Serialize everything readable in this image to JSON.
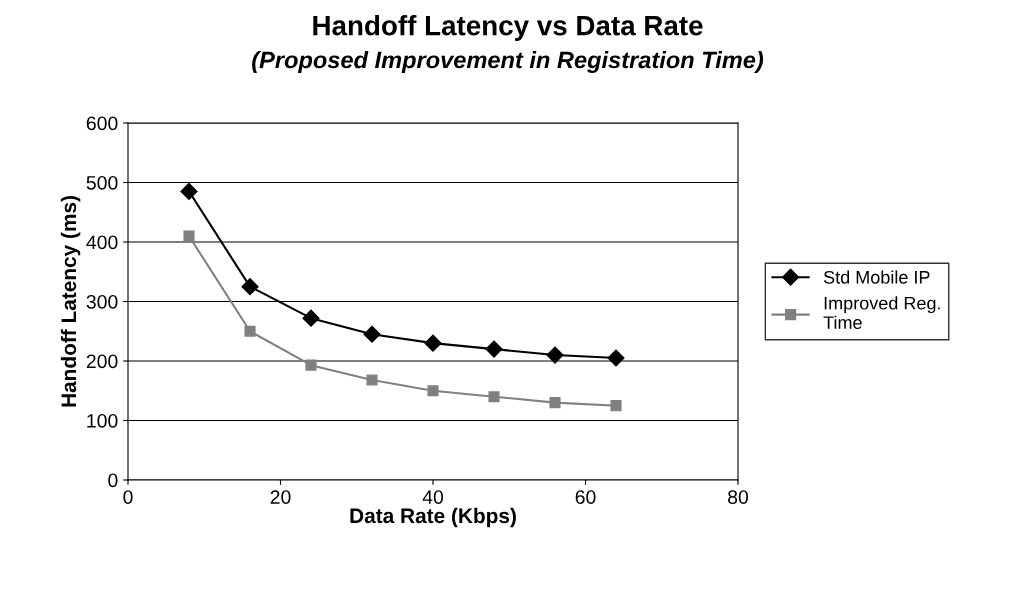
{
  "chart_data": {
    "type": "line",
    "title": "Handoff Latency vs Data Rate",
    "subtitle": "(Proposed Improvement in Registration Time)",
    "xlabel": "Data Rate (Kbps)",
    "ylabel": "Handoff Latency (ms)",
    "x": [
      8,
      16,
      24,
      32,
      40,
      48,
      56,
      64
    ],
    "series": [
      {
        "name": "Std Mobile IP",
        "color": "#000000",
        "marker": "diamond",
        "values": [
          485,
          325,
          272,
          245,
          230,
          220,
          210,
          205
        ]
      },
      {
        "name": "Improved Reg.\nTime",
        "color": "#808080",
        "marker": "square",
        "values": [
          410,
          250,
          193,
          168,
          150,
          140,
          130,
          125
        ]
      }
    ],
    "xlim": [
      0,
      80
    ],
    "xticks": [
      0,
      20,
      40,
      60,
      80
    ],
    "ylim": [
      0,
      600
    ],
    "yticks": [
      0,
      100,
      200,
      300,
      400,
      500,
      600
    ],
    "grid": "y",
    "legend": "right",
    "line_style": "solid"
  }
}
